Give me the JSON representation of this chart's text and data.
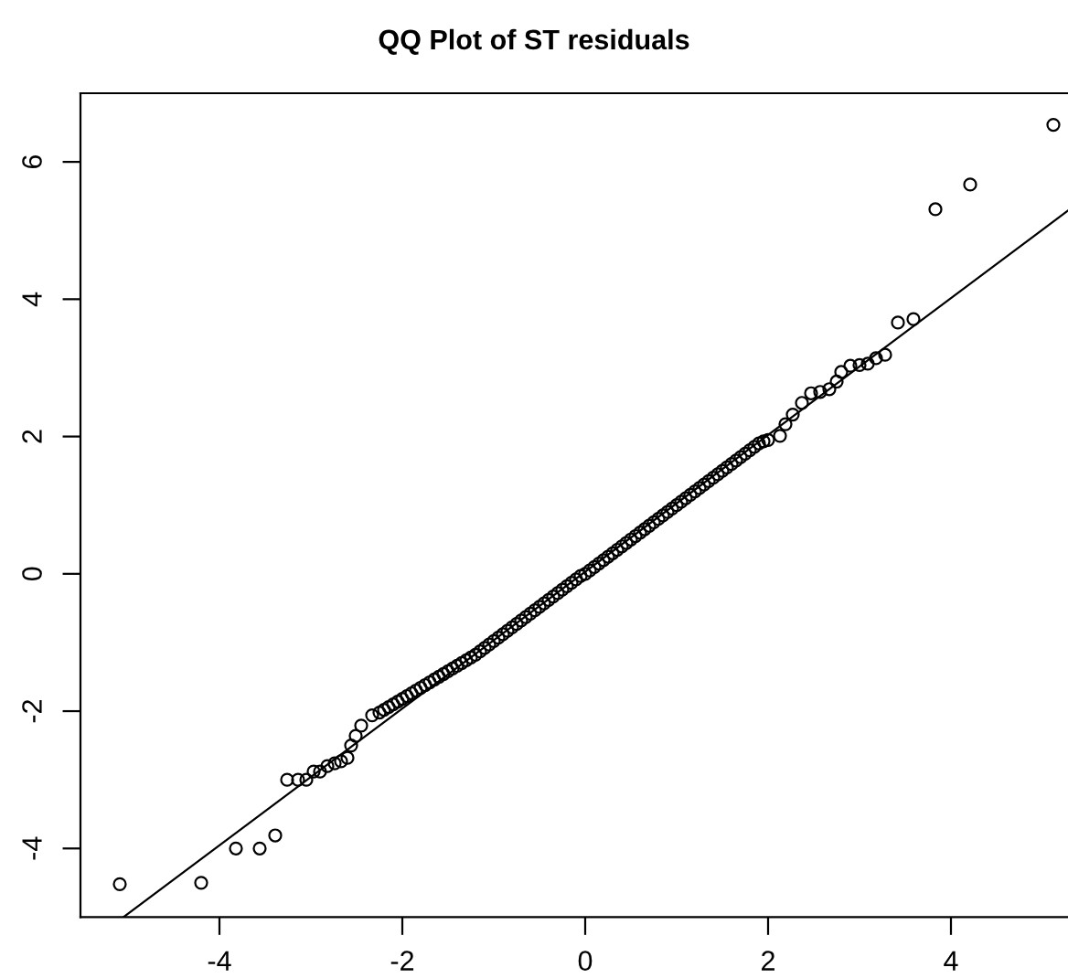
{
  "chart_data": {
    "type": "scatter",
    "title": "QQ Plot of ST residuals",
    "xlim": [
      -5.52,
      5.28
    ],
    "ylim": [
      -5.0,
      7.0
    ],
    "xticks": [
      -4,
      -2,
      0,
      2,
      4
    ],
    "yticks": [
      -4,
      -2,
      0,
      2,
      4,
      6
    ],
    "grid": false,
    "legend": false,
    "series": [
      {
        "marker": "circle",
        "color": "#000000",
        "x": [
          -5.09,
          -4.2,
          -3.82,
          -3.56,
          -3.39,
          -3.26,
          -3.14,
          -3.05,
          -2.97,
          -2.9,
          -2.82,
          -2.74,
          -2.67,
          -2.6,
          -2.56,
          -2.51,
          -2.45,
          -2.33,
          -2.25,
          -2.2,
          -2.15,
          -2.1,
          -2.05,
          -2.0,
          -1.95,
          -1.9,
          -1.85,
          -1.8,
          -1.75,
          -1.7,
          -1.65,
          -1.6,
          -1.55,
          -1.5,
          -1.45,
          -1.4,
          -1.35,
          -1.3,
          -1.25,
          -1.2,
          -1.15,
          -1.1,
          -1.05,
          -1.0,
          -0.95,
          -0.9,
          -0.85,
          -0.8,
          -0.75,
          -0.7,
          -0.65,
          -0.6,
          -0.55,
          -0.5,
          -0.45,
          -0.4,
          -0.35,
          -0.3,
          -0.25,
          -0.2,
          -0.15,
          -0.1,
          -0.05,
          0.0,
          0.05,
          0.1,
          0.15,
          0.2,
          0.25,
          0.3,
          0.35,
          0.4,
          0.45,
          0.5,
          0.55,
          0.6,
          0.65,
          0.7,
          0.75,
          0.8,
          0.85,
          0.9,
          0.95,
          1.0,
          1.05,
          1.1,
          1.15,
          1.2,
          1.25,
          1.3,
          1.35,
          1.4,
          1.45,
          1.5,
          1.55,
          1.6,
          1.65,
          1.7,
          1.75,
          1.8,
          1.85,
          1.9,
          1.95,
          2.0,
          2.13,
          2.19,
          2.27,
          2.37,
          2.47,
          2.57,
          2.67,
          2.75,
          2.8,
          2.9,
          3.0,
          3.09,
          3.18,
          3.28,
          3.42,
          3.59,
          3.83,
          4.21,
          5.12
        ],
        "values": [
          -4.52,
          -4.5,
          -4.0,
          -4.0,
          -3.81,
          -3.0,
          -3.0,
          -3.0,
          -2.88,
          -2.88,
          -2.8,
          -2.76,
          -2.73,
          -2.68,
          -2.5,
          -2.36,
          -2.21,
          -2.06,
          -2.02,
          -1.98,
          -1.94,
          -1.9,
          -1.86,
          -1.82,
          -1.78,
          -1.74,
          -1.7,
          -1.66,
          -1.62,
          -1.58,
          -1.54,
          -1.5,
          -1.46,
          -1.42,
          -1.38,
          -1.34,
          -1.3,
          -1.26,
          -1.22,
          -1.18,
          -1.13,
          -1.08,
          -1.03,
          -0.98,
          -0.93,
          -0.88,
          -0.83,
          -0.78,
          -0.73,
          -0.68,
          -0.63,
          -0.58,
          -0.53,
          -0.48,
          -0.43,
          -0.38,
          -0.33,
          -0.28,
          -0.23,
          -0.18,
          -0.13,
          -0.08,
          -0.03,
          0.0,
          0.05,
          0.1,
          0.15,
          0.2,
          0.25,
          0.3,
          0.35,
          0.4,
          0.45,
          0.5,
          0.55,
          0.6,
          0.65,
          0.7,
          0.75,
          0.8,
          0.85,
          0.9,
          0.95,
          1.0,
          1.05,
          1.1,
          1.15,
          1.2,
          1.25,
          1.3,
          1.35,
          1.4,
          1.45,
          1.5,
          1.55,
          1.6,
          1.65,
          1.7,
          1.75,
          1.8,
          1.85,
          1.9,
          1.93,
          1.95,
          2.01,
          2.18,
          2.32,
          2.49,
          2.63,
          2.65,
          2.69,
          2.8,
          2.94,
          3.03,
          3.04,
          3.06,
          3.14,
          3.19,
          3.66,
          3.71,
          5.31,
          5.67,
          6.54
        ]
      },
      {
        "type": "line",
        "marker": "none",
        "line_style": "solid",
        "color": "#000000",
        "x": [
          -5.05,
          5.28
        ],
        "values": [
          -5.0,
          5.29
        ]
      }
    ]
  }
}
